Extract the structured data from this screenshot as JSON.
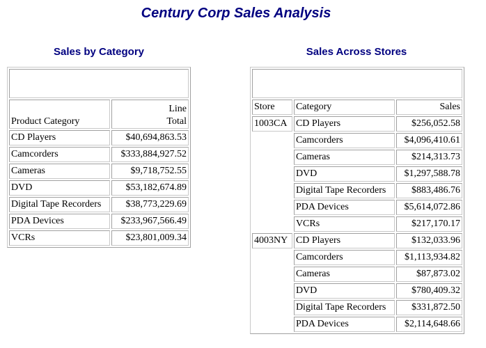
{
  "report": {
    "title": "Century Corp Sales Analysis"
  },
  "category_table": {
    "title": "Sales by Category",
    "headers": {
      "category": "Product Category",
      "total_line1": "Line",
      "total_line2": "Total"
    },
    "rows": [
      {
        "category": "CD Players",
        "total": "$40,694,863.53"
      },
      {
        "category": "Camcorders",
        "total": "$333,884,927.52"
      },
      {
        "category": "Cameras",
        "total": "$9,718,752.55"
      },
      {
        "category": "DVD",
        "total": "$53,182,674.89"
      },
      {
        "category": "Digital Tape Recorders",
        "total": "$38,773,229.69"
      },
      {
        "category": "PDA Devices",
        "total": "$233,967,566.49"
      },
      {
        "category": "VCRs",
        "total": "$23,801,009.34"
      }
    ]
  },
  "store_table": {
    "title": "Sales Across Stores",
    "headers": {
      "store": "Store",
      "category": "Category",
      "sales": "Sales"
    },
    "groups": [
      {
        "store": "1003CA",
        "rows": [
          {
            "category": "CD Players",
            "sales": "$256,052.58"
          },
          {
            "category": "Camcorders",
            "sales": "$4,096,410.61"
          },
          {
            "category": "Cameras",
            "sales": "$214,313.73"
          },
          {
            "category": "DVD",
            "sales": "$1,297,588.78"
          },
          {
            "category": "Digital Tape Recorders",
            "sales": "$883,486.76"
          },
          {
            "category": "PDA Devices",
            "sales": "$5,614,072.86"
          },
          {
            "category": "VCRs",
            "sales": "$217,170.17"
          }
        ]
      },
      {
        "store": "4003NY",
        "rows": [
          {
            "category": "CD Players",
            "sales": "$132,033.96"
          },
          {
            "category": "Camcorders",
            "sales": "$1,113,934.82"
          },
          {
            "category": "Cameras",
            "sales": "$87,873.02"
          },
          {
            "category": "DVD",
            "sales": "$780,409.32"
          },
          {
            "category": "Digital Tape Recorders",
            "sales": "$331,872.50"
          },
          {
            "category": "PDA Devices",
            "sales": "$2,114,648.66"
          }
        ]
      }
    ]
  }
}
